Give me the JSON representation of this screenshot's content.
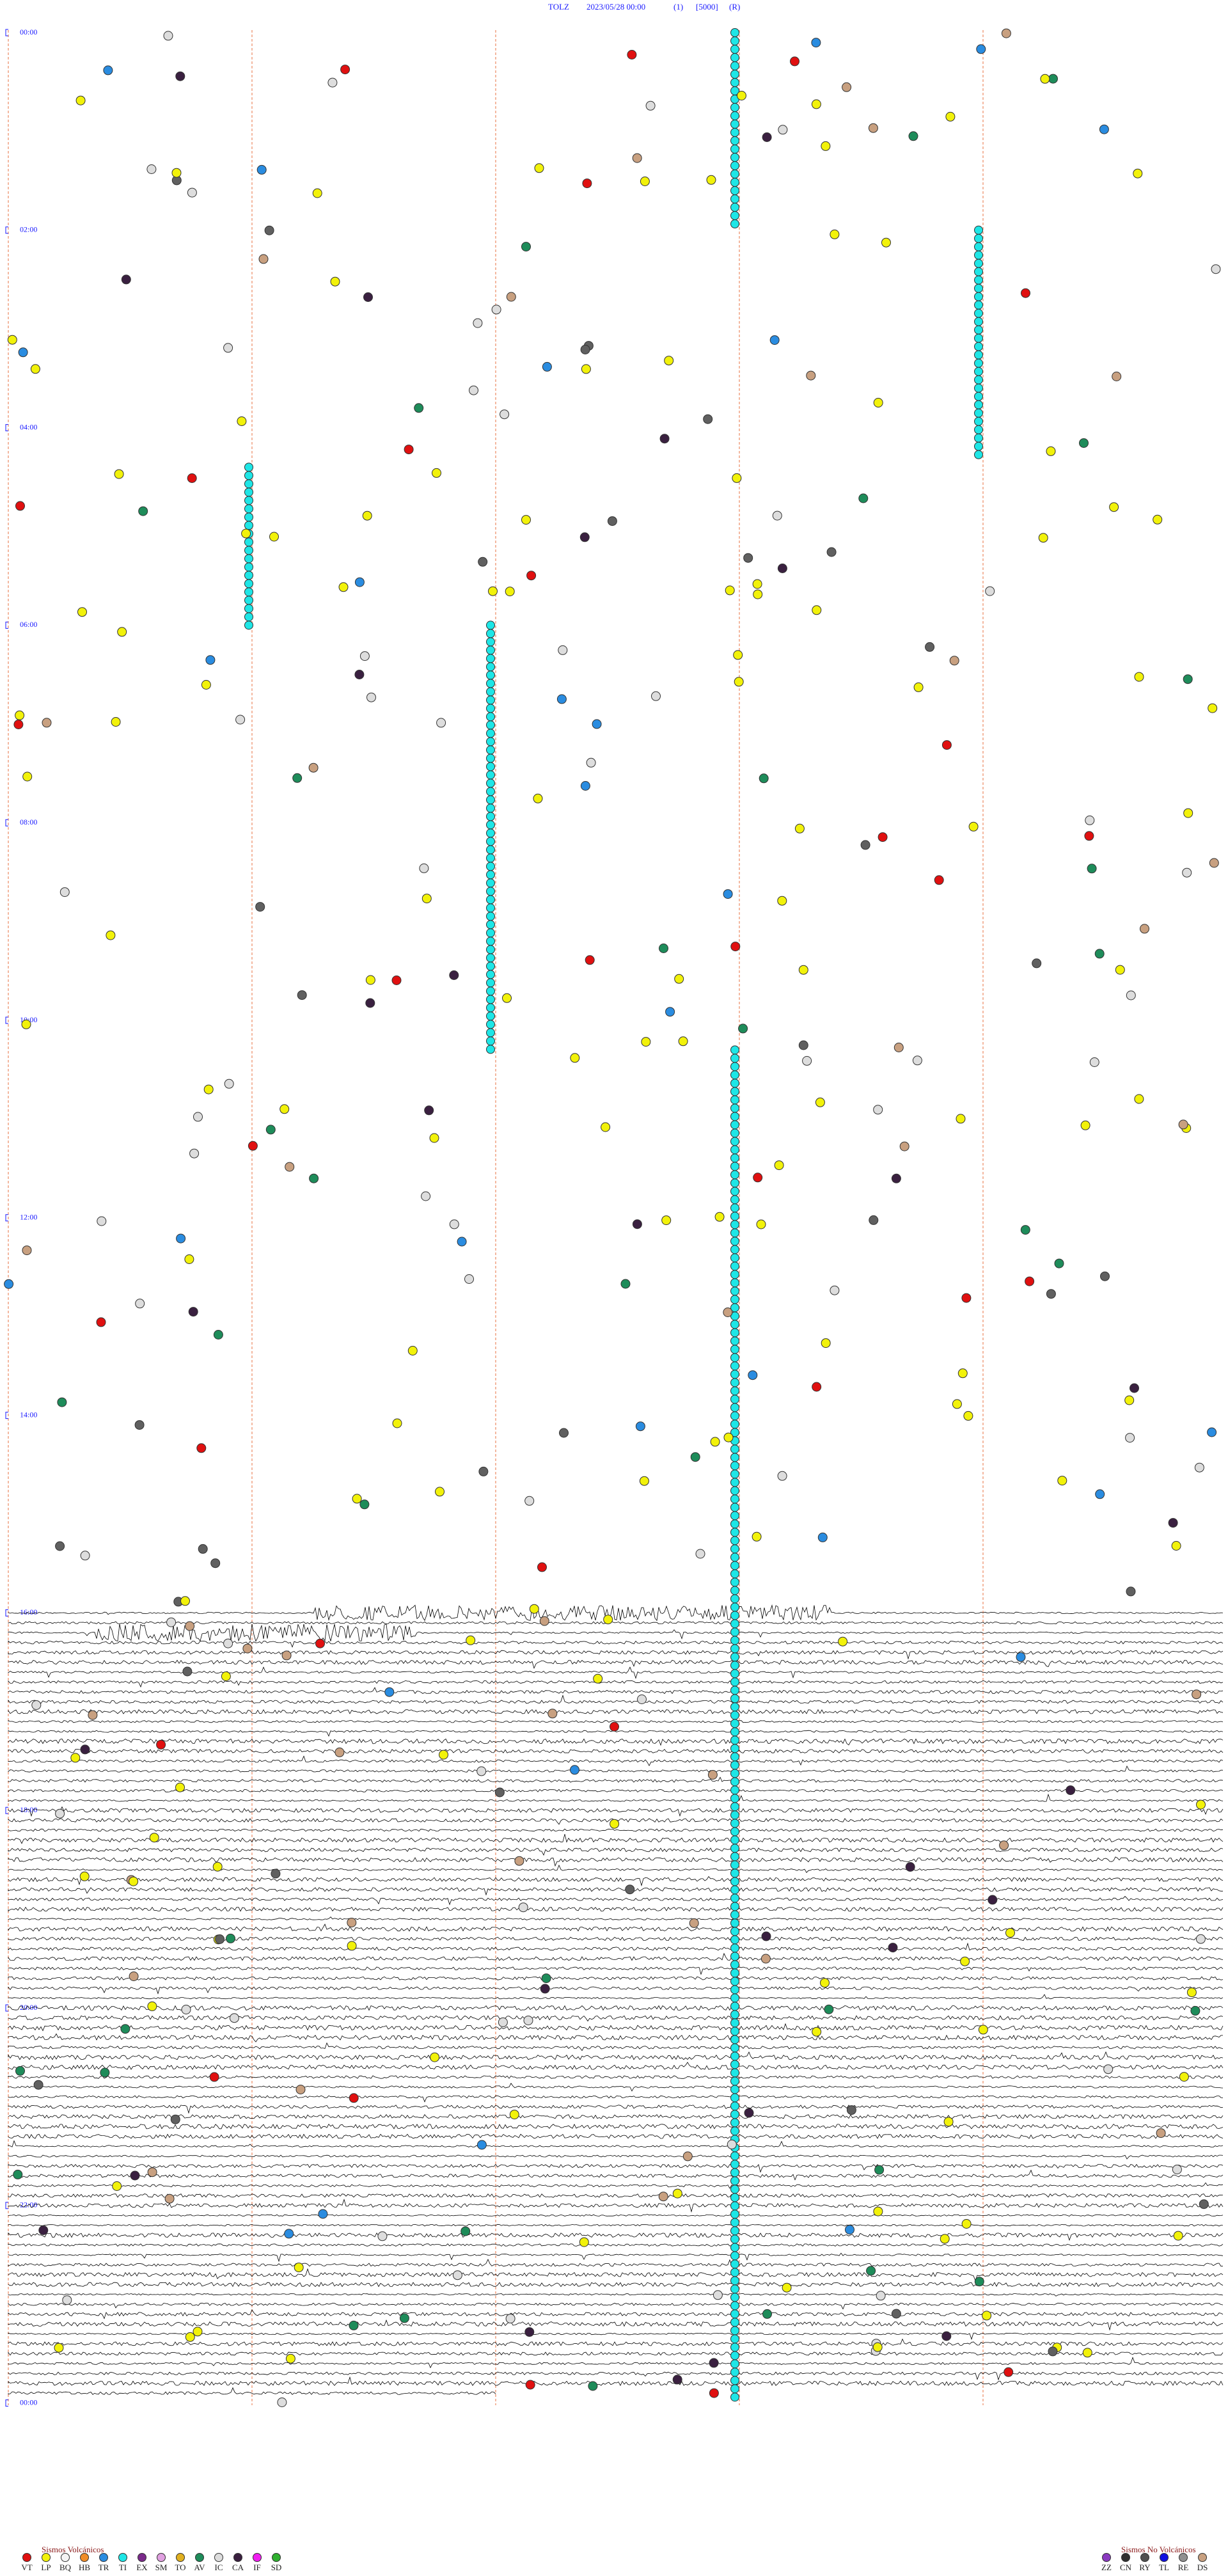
{
  "header": {
    "station": "TOLZ",
    "datetime": "2023/05/28 00:00",
    "channel": "(1)",
    "scale": "[5000]",
    "mode": "(R)"
  },
  "hour_labels": [
    "00:00",
    "02:00",
    "04:00",
    "06:00",
    "08:00",
    "10:00",
    "12:00",
    "14:00",
    "16:00",
    "18:00",
    "20:00",
    "22:00",
    "00:00"
  ],
  "legend_volcanic": {
    "title": "Sismos Volcánicos",
    "items": [
      {
        "code": "VT",
        "color": "#e01010"
      },
      {
        "code": "LP",
        "color": "#f2f20a"
      },
      {
        "code": "BQ",
        "color": "#f5f5f5"
      },
      {
        "code": "HB",
        "color": "#f08c28"
      },
      {
        "code": "TR",
        "color": "#2a8ce0"
      },
      {
        "code": "TI",
        "color": "#1ee6e6"
      },
      {
        "code": "EX",
        "color": "#7a2a8a"
      },
      {
        "code": "SM",
        "color": "#e0a0e0"
      },
      {
        "code": "TO",
        "color": "#e0b020"
      },
      {
        "code": "AV",
        "color": "#1e8c5a"
      },
      {
        "code": "IC",
        "color": "#dddddd"
      },
      {
        "code": "CA",
        "color": "#3a2040"
      },
      {
        "code": "IF",
        "color": "#f01ef0"
      },
      {
        "code": "SD",
        "color": "#30b030"
      }
    ]
  },
  "legend_nonvolcanic": {
    "title": "Sismos No Volcánicos",
    "items": [
      {
        "code": "ZZ",
        "color": "#8a3ac0"
      },
      {
        "code": "CN",
        "color": "#303030"
      },
      {
        "code": "RY",
        "color": "#505050"
      },
      {
        "code": "TL",
        "color": "#1010e0"
      },
      {
        "code": "RE",
        "color": "#909090"
      },
      {
        "code": "DS",
        "color": "#c8a080"
      }
    ]
  }
}
